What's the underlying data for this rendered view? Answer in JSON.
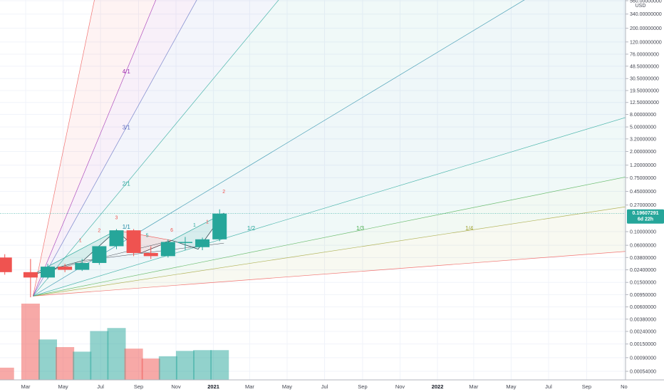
{
  "chart_data": {
    "type": "candlestick",
    "currency": "USD",
    "price_axis": {
      "scale": "log",
      "ylim": [
        0.0004,
        560
      ],
      "ticks": [
        {
          "value": 560,
          "label": "560.00000000"
        },
        {
          "value": 340,
          "label": "340.00000000"
        },
        {
          "value": 200,
          "label": "200.00000000"
        },
        {
          "value": 120,
          "label": "120.00000000"
        },
        {
          "value": 76,
          "label": "76.00000000"
        },
        {
          "value": 48.5,
          "label": "48.50000000"
        },
        {
          "value": 30.5,
          "label": "30.50000000"
        },
        {
          "value": 19.5,
          "label": "19.50000000"
        },
        {
          "value": 12.5,
          "label": "12.50000000"
        },
        {
          "value": 8,
          "label": "8.00000000"
        },
        {
          "value": 5,
          "label": "5.00000000"
        },
        {
          "value": 3.2,
          "label": "3.20000000"
        },
        {
          "value": 2,
          "label": "2.00000000"
        },
        {
          "value": 1.2,
          "label": "1.20000000"
        },
        {
          "value": 0.75,
          "label": "0.75000000"
        },
        {
          "value": 0.45,
          "label": "0.45000000"
        },
        {
          "value": 0.27,
          "label": "0.27000000"
        },
        {
          "value": 0.1,
          "label": "0.10000000"
        },
        {
          "value": 0.06,
          "label": "0.06000000"
        },
        {
          "value": 0.038,
          "label": "0.03800000"
        },
        {
          "value": 0.024,
          "label": "0.02400000"
        },
        {
          "value": 0.015,
          "label": "0.01500000"
        },
        {
          "value": 0.0095,
          "label": "0.00950000"
        },
        {
          "value": 0.006,
          "label": "0.00600000"
        },
        {
          "value": 0.0038,
          "label": "0.00380000"
        },
        {
          "value": 0.0024,
          "label": "0.00240000"
        },
        {
          "value": 0.0015,
          "label": "0.00150000"
        },
        {
          "value": 0.0009,
          "label": "0.00090000"
        },
        {
          "value": 0.00054,
          "label": "0.00054000"
        }
      ]
    },
    "last_price": {
      "value": 0.19607291,
      "label": "0.19607291",
      "countdown": "6d 22h",
      "color": "#26a69a"
    },
    "x_axis": {
      "months": [
        {
          "date": "2020-03-01",
          "label": "Mar",
          "bold": false
        },
        {
          "date": "2020-05-01",
          "label": "May",
          "bold": false
        },
        {
          "date": "2020-07-01",
          "label": "Jul",
          "bold": false
        },
        {
          "date": "2020-09-01",
          "label": "Sep",
          "bold": false
        },
        {
          "date": "2020-11-01",
          "label": "Nov",
          "bold": false
        },
        {
          "date": "2021-01-01",
          "label": "2021",
          "bold": true
        },
        {
          "date": "2021-03-01",
          "label": "Mar",
          "bold": false
        },
        {
          "date": "2021-05-01",
          "label": "May",
          "bold": false
        },
        {
          "date": "2021-07-01",
          "label": "Jul",
          "bold": false
        },
        {
          "date": "2021-09-01",
          "label": "Sep",
          "bold": false
        },
        {
          "date": "2021-11-01",
          "label": "Nov",
          "bold": false
        },
        {
          "date": "2022-01-01",
          "label": "2022",
          "bold": true
        },
        {
          "date": "2022-03-01",
          "label": "Mar",
          "bold": false
        },
        {
          "date": "2022-05-01",
          "label": "May",
          "bold": false
        },
        {
          "date": "2022-07-01",
          "label": "Jul",
          "bold": false
        },
        {
          "date": "2022-09-01",
          "label": "Sep",
          "bold": false
        },
        {
          "date": "2022-11-01",
          "label": "No",
          "bold": false
        }
      ]
    },
    "candles": [
      {
        "date": "2020-01-27",
        "open": 0.038,
        "high": 0.043,
        "low": 0.02,
        "close": 0.022
      },
      {
        "date": "2020-03-09",
        "open": 0.022,
        "high": 0.036,
        "low": 0.0086,
        "close": 0.018
      },
      {
        "date": "2020-04-06",
        "open": 0.018,
        "high": 0.03,
        "low": 0.017,
        "close": 0.027
      },
      {
        "date": "2020-05-04",
        "open": 0.027,
        "high": 0.03,
        "low": 0.022,
        "close": 0.024
      },
      {
        "date": "2020-06-01",
        "open": 0.024,
        "high": 0.036,
        "low": 0.023,
        "close": 0.031
      },
      {
        "date": "2020-06-29",
        "open": 0.031,
        "high": 0.06,
        "low": 0.029,
        "close": 0.058
      },
      {
        "date": "2020-07-27",
        "open": 0.058,
        "high": 0.11,
        "low": 0.052,
        "close": 0.105
      },
      {
        "date": "2020-08-24",
        "open": 0.105,
        "high": 0.11,
        "low": 0.04,
        "close": 0.045
      },
      {
        "date": "2020-09-21",
        "open": 0.045,
        "high": 0.058,
        "low": 0.036,
        "close": 0.04
      },
      {
        "date": "2020-10-19",
        "open": 0.04,
        "high": 0.075,
        "low": 0.038,
        "close": 0.068
      },
      {
        "date": "2020-11-16",
        "open": 0.068,
        "high": 0.082,
        "low": 0.05,
        "close": 0.068
      },
      {
        "date": "2020-12-14",
        "open": 0.056,
        "high": 0.08,
        "low": 0.05,
        "close": 0.075
      },
      {
        "date": "2021-01-11",
        "open": 0.075,
        "high": 0.23,
        "low": 0.07,
        "close": 0.196
      }
    ],
    "volume": [
      {
        "date": "2020-01-27",
        "level": 0.16,
        "up": false
      },
      {
        "date": "2020-03-09",
        "level": 1.0,
        "up": false
      },
      {
        "date": "2020-04-06",
        "level": 0.53,
        "up": true
      },
      {
        "date": "2020-05-04",
        "level": 0.43,
        "up": false
      },
      {
        "date": "2020-06-01",
        "level": 0.37,
        "up": true
      },
      {
        "date": "2020-06-29",
        "level": 0.64,
        "up": true
      },
      {
        "date": "2020-07-27",
        "level": 0.68,
        "up": true
      },
      {
        "date": "2020-08-24",
        "level": 0.41,
        "up": false
      },
      {
        "date": "2020-09-21",
        "level": 0.28,
        "up": false
      },
      {
        "date": "2020-10-19",
        "level": 0.31,
        "up": true
      },
      {
        "date": "2020-11-16",
        "level": 0.38,
        "up": true
      },
      {
        "date": "2020-12-14",
        "level": 0.39,
        "up": true
      },
      {
        "date": "2021-01-11",
        "level": 0.39,
        "up": true
      }
    ],
    "gann_fan": {
      "origin": {
        "date": "2020-03-13",
        "price": 0.009
      },
      "ref": {
        "date": "2020-07-27",
        "price": 0.059
      },
      "lines": [
        {
          "ratio": 8,
          "label": "1/8",
          "color": "#ef5350"
        },
        {
          "ratio": 4,
          "label": "1/4",
          "color": "#a1a333"
        },
        {
          "ratio": 3,
          "label": "1/3",
          "color": "#4caf50"
        },
        {
          "ratio": 2,
          "label": "1/2",
          "color": "#26a69a"
        },
        {
          "ratio": 1,
          "label": "1/1",
          "color": "#1e88a5"
        },
        {
          "ratio": 0.5,
          "label": "2/1",
          "color": "#26a69a"
        },
        {
          "ratio": 0.3333,
          "label": "3/1",
          "color": "#5c6bc0"
        },
        {
          "ratio": 0.25,
          "label": "4/1",
          "color": "#9c27b0"
        },
        {
          "ratio": 0.125,
          "label": "8/1",
          "color": "#ef5350"
        }
      ]
    },
    "wave_labels": [
      {
        "text": "1",
        "date": "2020-05-29",
        "price": 0.068,
        "color": "#ef5350"
      },
      {
        "text": "2",
        "date": "2020-06-29",
        "price": 0.098,
        "color": "#ef5350"
      },
      {
        "text": "3",
        "date": "2020-07-27",
        "price": 0.16,
        "color": "#ef5350"
      },
      {
        "text": "5",
        "date": "2020-09-15",
        "price": 0.082,
        "color": "#26a69a"
      },
      {
        "text": "6",
        "date": "2020-10-25",
        "price": 0.1,
        "color": "#ef5350"
      },
      {
        "text": "1",
        "date": "2020-12-01",
        "price": 0.12,
        "color": "#26a69a"
      },
      {
        "text": "1",
        "date": "2020-12-22",
        "price": 0.135,
        "color": "#ef5350"
      },
      {
        "text": "2",
        "date": "2021-01-18",
        "price": 0.42,
        "color": "#ef5350"
      }
    ],
    "pattern_points": [
      {
        "date": "2020-03-12",
        "price": 0.02
      },
      {
        "date": "2020-06-03",
        "price": 0.034
      },
      {
        "date": "2020-07-27",
        "price": 0.105
      },
      {
        "date": "2020-09-05",
        "price": 0.045
      },
      {
        "date": "2020-10-25",
        "price": 0.072
      },
      {
        "date": "2020-12-07",
        "price": 0.052
      },
      {
        "date": "2021-01-18",
        "price": 0.2
      },
      {
        "date": "2021-01-18",
        "price": 0.065
      }
    ]
  }
}
